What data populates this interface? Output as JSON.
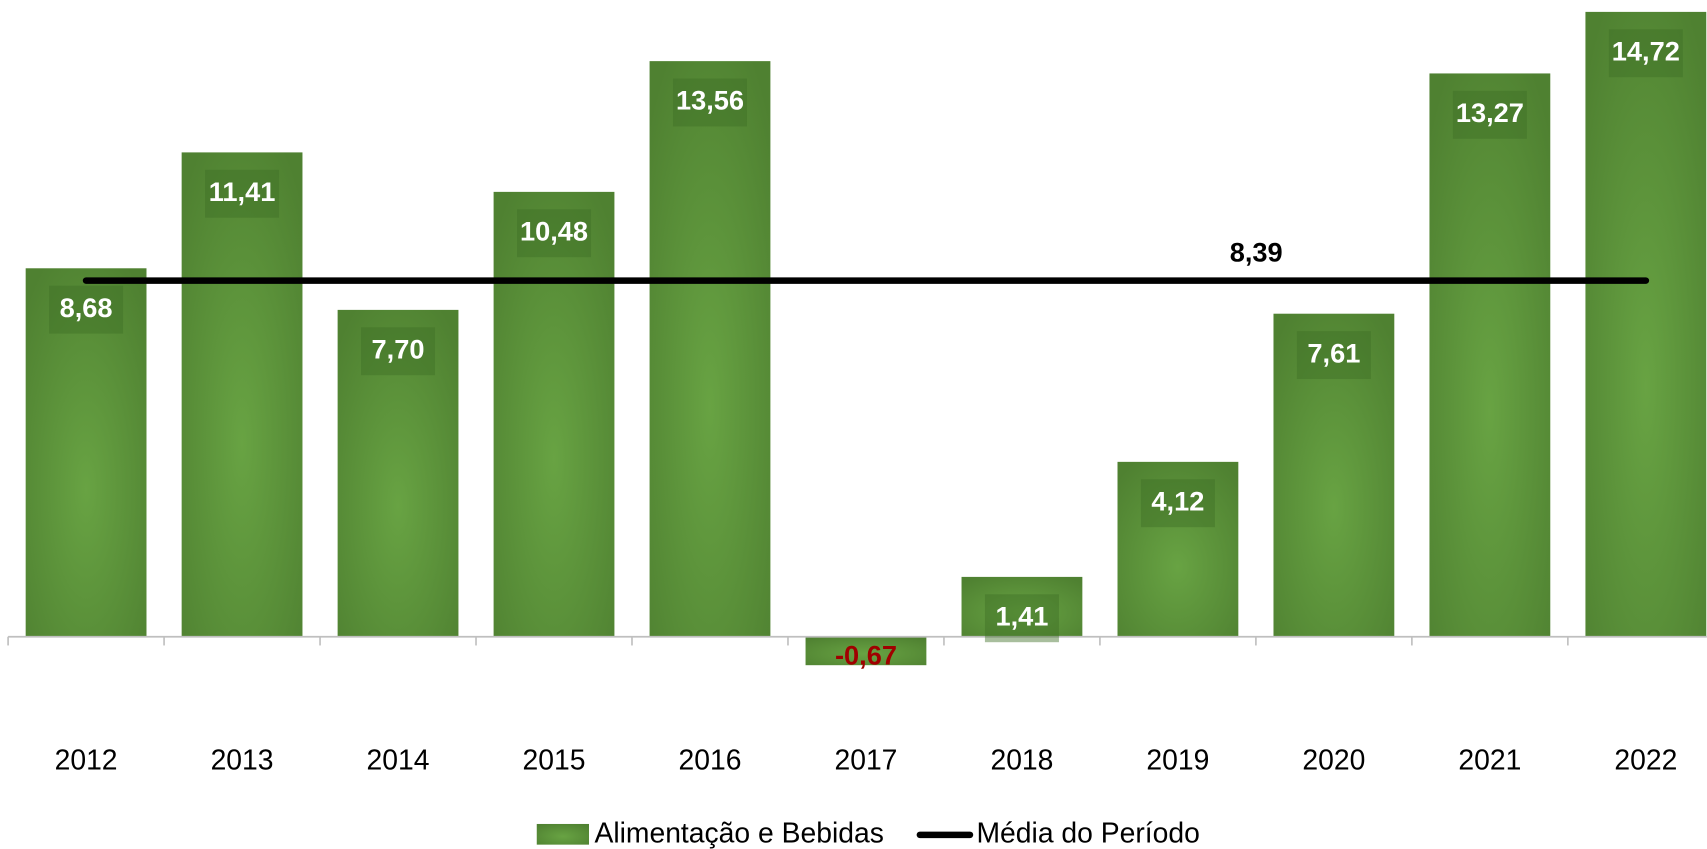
{
  "chart_data": {
    "type": "bar",
    "categories": [
      "2012",
      "2013",
      "2014",
      "2015",
      "2016",
      "2017",
      "2018",
      "2019",
      "2020",
      "2021",
      "2022"
    ],
    "series": [
      {
        "name": "Alimentação e Bebidas",
        "color": "#5a8f39",
        "values": [
          8.68,
          11.41,
          7.7,
          10.48,
          13.56,
          -0.67,
          1.41,
          4.12,
          7.61,
          13.27,
          14.72
        ],
        "value_labels": [
          "8,68",
          "11,41",
          "7,70",
          "10,48",
          "13,56",
          "-0,67",
          "1,41",
          "4,12",
          "7,61",
          "13,27",
          "14,72"
        ]
      }
    ],
    "reference_line": {
      "name": "Média do Período",
      "color": "#000000",
      "value": 8.39,
      "label": "8,39"
    },
    "negative_label_color": "#a00000",
    "ylim": [
      -2,
      15
    ]
  }
}
